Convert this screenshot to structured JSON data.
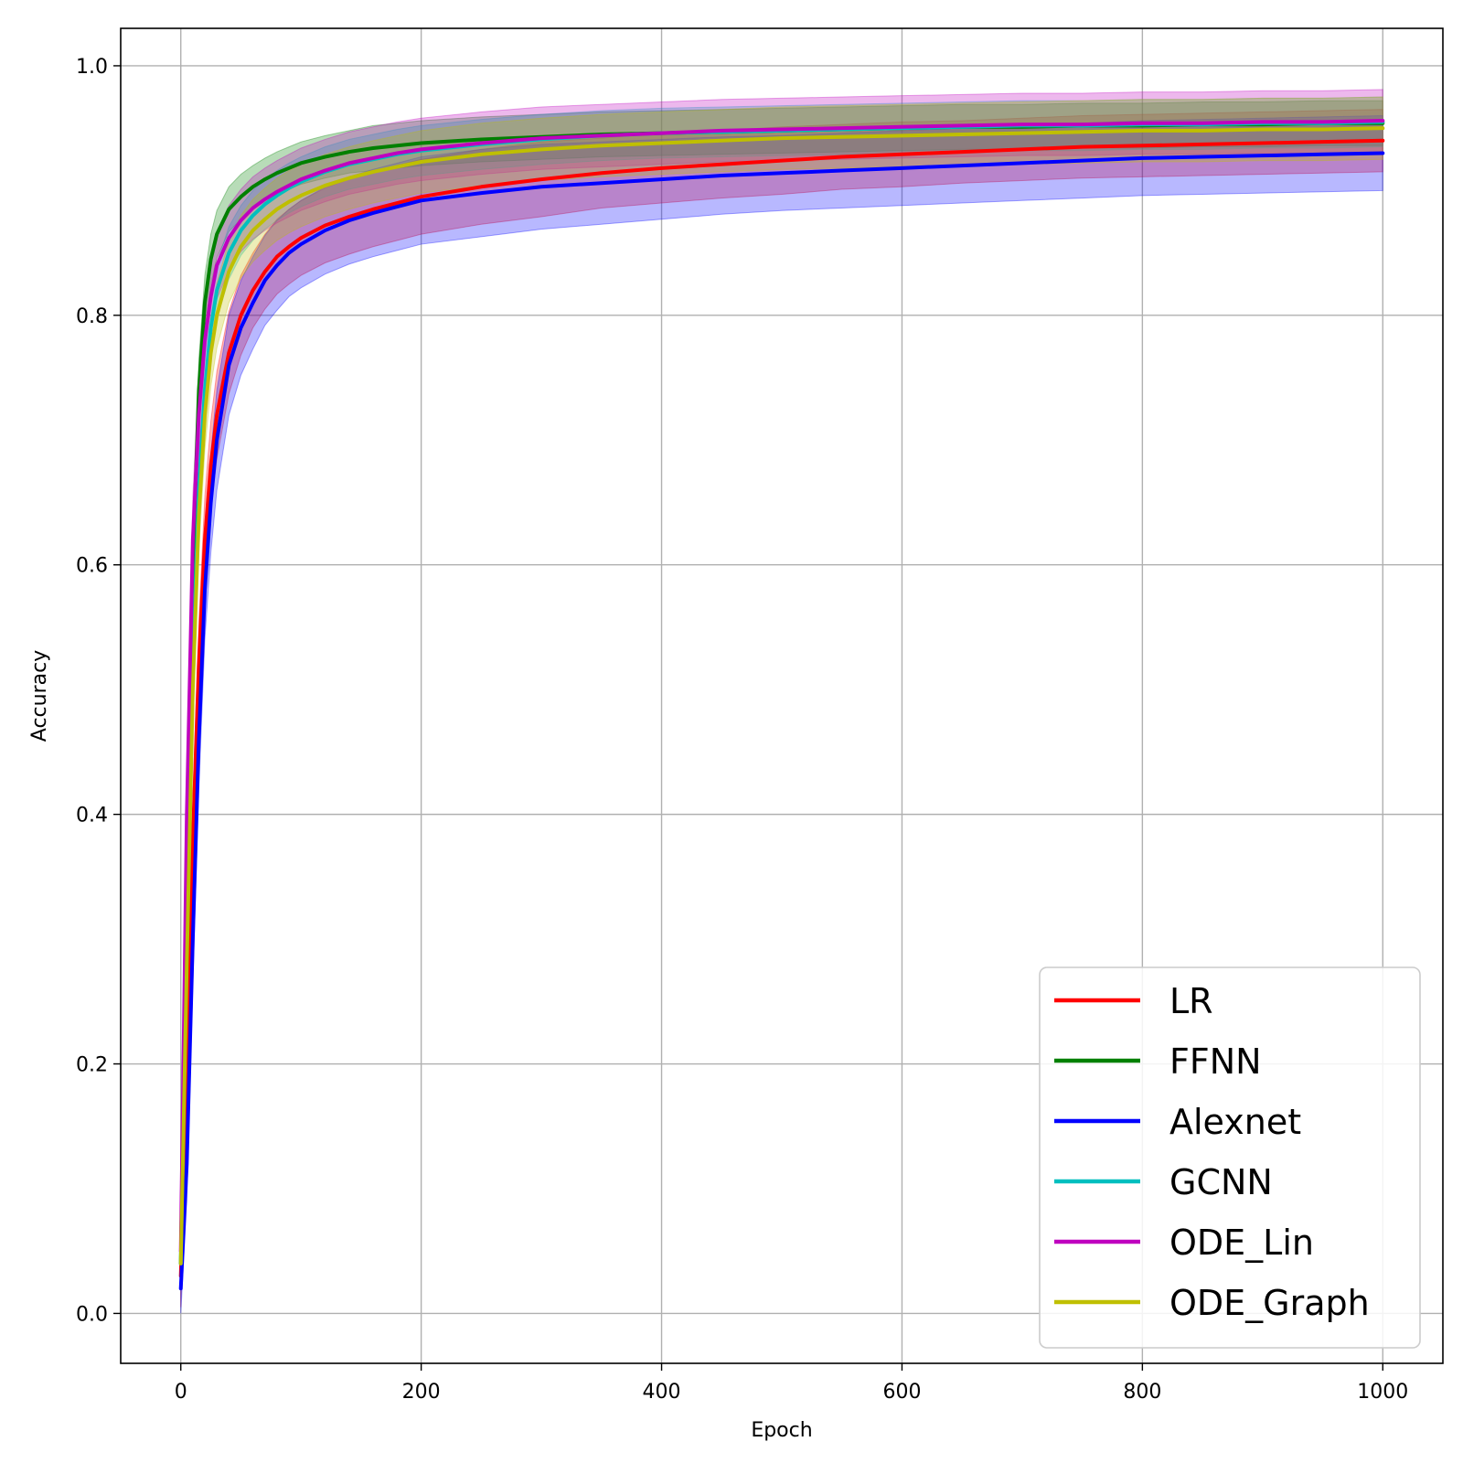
{
  "chart_data": {
    "type": "line",
    "title": "",
    "xlabel": "Epoch",
    "ylabel": "Accuracy",
    "xlim": [
      -50,
      1050
    ],
    "ylim": [
      -0.04,
      1.03
    ],
    "xticks": [
      0,
      200,
      400,
      600,
      800,
      1000
    ],
    "xtick_labels": [
      "0",
      "200",
      "400",
      "600",
      "800",
      "1000"
    ],
    "yticks": [
      0.0,
      0.2,
      0.4,
      0.6,
      0.8,
      1.0
    ],
    "ytick_labels": [
      "0.0",
      "0.2",
      "0.4",
      "0.6",
      "0.8",
      "1.0"
    ],
    "grid": true,
    "legend_position": "bottom-right",
    "x": [
      0,
      5,
      10,
      15,
      20,
      25,
      30,
      40,
      50,
      60,
      70,
      80,
      90,
      100,
      120,
      140,
      160,
      180,
      200,
      250,
      300,
      350,
      400,
      450,
      500,
      550,
      600,
      650,
      700,
      750,
      800,
      850,
      900,
      950,
      1000
    ],
    "series": [
      {
        "name": "LR",
        "color": "#ff0000",
        "values": [
          0.03,
          0.2,
          0.38,
          0.52,
          0.62,
          0.68,
          0.72,
          0.77,
          0.8,
          0.82,
          0.835,
          0.847,
          0.855,
          0.862,
          0.872,
          0.879,
          0.885,
          0.89,
          0.895,
          0.903,
          0.909,
          0.914,
          0.918,
          0.921,
          0.924,
          0.927,
          0.929,
          0.931,
          0.933,
          0.935,
          0.936,
          0.937,
          0.938,
          0.939,
          0.94
        ],
        "band": [
          0.025,
          0.025,
          0.03,
          0.035,
          0.035,
          0.035,
          0.035,
          0.033,
          0.032,
          0.03,
          0.03,
          0.03,
          0.03,
          0.03,
          0.03,
          0.03,
          0.03,
          0.03,
          0.03,
          0.03,
          0.03,
          0.028,
          0.028,
          0.027,
          0.027,
          0.026,
          0.026,
          0.025,
          0.025,
          0.025,
          0.025,
          0.025,
          0.025,
          0.025,
          0.025
        ]
      },
      {
        "name": "FFNN",
        "color": "#008000",
        "values": [
          0.04,
          0.35,
          0.6,
          0.74,
          0.81,
          0.845,
          0.865,
          0.885,
          0.895,
          0.903,
          0.909,
          0.914,
          0.918,
          0.922,
          0.927,
          0.931,
          0.934,
          0.936,
          0.938,
          0.941,
          0.943,
          0.945,
          0.946,
          0.947,
          0.948,
          0.949,
          0.95,
          0.951,
          0.951,
          0.952,
          0.952,
          0.953,
          0.953,
          0.954,
          0.954
        ],
        "band": [
          0.02,
          0.03,
          0.03,
          0.025,
          0.022,
          0.02,
          0.019,
          0.018,
          0.018,
          0.017,
          0.017,
          0.017,
          0.017,
          0.017,
          0.017,
          0.017,
          0.018,
          0.018,
          0.018,
          0.018,
          0.018,
          0.018,
          0.018,
          0.018,
          0.018,
          0.018,
          0.018,
          0.018,
          0.018,
          0.018,
          0.018,
          0.018,
          0.018,
          0.018,
          0.018
        ]
      },
      {
        "name": "Alexnet",
        "color": "#0000ff",
        "values": [
          0.02,
          0.12,
          0.3,
          0.46,
          0.58,
          0.65,
          0.7,
          0.76,
          0.79,
          0.81,
          0.828,
          0.84,
          0.85,
          0.857,
          0.868,
          0.876,
          0.882,
          0.887,
          0.892,
          0.898,
          0.903,
          0.906,
          0.909,
          0.912,
          0.914,
          0.916,
          0.918,
          0.92,
          0.922,
          0.924,
          0.926,
          0.927,
          0.928,
          0.929,
          0.93
        ],
        "band": [
          0.02,
          0.03,
          0.035,
          0.04,
          0.04,
          0.04,
          0.04,
          0.04,
          0.038,
          0.037,
          0.036,
          0.036,
          0.035,
          0.035,
          0.035,
          0.035,
          0.035,
          0.035,
          0.035,
          0.035,
          0.034,
          0.033,
          0.032,
          0.031,
          0.03,
          0.03,
          0.03,
          0.03,
          0.03,
          0.03,
          0.03,
          0.03,
          0.03,
          0.03,
          0.03
        ]
      },
      {
        "name": "GCNN",
        "color": "#00bfbf",
        "values": [
          0.04,
          0.3,
          0.52,
          0.66,
          0.74,
          0.79,
          0.82,
          0.85,
          0.868,
          0.88,
          0.889,
          0.896,
          0.902,
          0.907,
          0.915,
          0.921,
          0.925,
          0.929,
          0.932,
          0.937,
          0.941,
          0.944,
          0.946,
          0.947,
          0.948,
          0.949,
          0.95,
          0.951,
          0.952,
          0.952,
          0.953,
          0.953,
          0.954,
          0.954,
          0.955
        ],
        "band": [
          0.02,
          0.03,
          0.03,
          0.028,
          0.026,
          0.024,
          0.022,
          0.021,
          0.02,
          0.02,
          0.02,
          0.02,
          0.02,
          0.02,
          0.02,
          0.02,
          0.02,
          0.02,
          0.02,
          0.02,
          0.02,
          0.02,
          0.02,
          0.02,
          0.02,
          0.02,
          0.02,
          0.02,
          0.02,
          0.02,
          0.02,
          0.02,
          0.02,
          0.02,
          0.02
        ]
      },
      {
        "name": "ODE_Lin",
        "color": "#bf00bf",
        "values": [
          0.05,
          0.4,
          0.62,
          0.72,
          0.78,
          0.815,
          0.84,
          0.862,
          0.876,
          0.886,
          0.893,
          0.899,
          0.904,
          0.909,
          0.916,
          0.922,
          0.926,
          0.93,
          0.933,
          0.938,
          0.942,
          0.944,
          0.946,
          0.948,
          0.949,
          0.95,
          0.951,
          0.952,
          0.953,
          0.953,
          0.954,
          0.954,
          0.955,
          0.955,
          0.956
        ],
        "band": [
          0.03,
          0.035,
          0.035,
          0.032,
          0.03,
          0.028,
          0.027,
          0.026,
          0.025,
          0.025,
          0.025,
          0.025,
          0.025,
          0.025,
          0.025,
          0.025,
          0.025,
          0.025,
          0.025,
          0.025,
          0.025,
          0.025,
          0.025,
          0.025,
          0.025,
          0.025,
          0.025,
          0.025,
          0.025,
          0.025,
          0.025,
          0.025,
          0.025,
          0.025,
          0.025
        ]
      },
      {
        "name": "ODE_Graph",
        "color": "#bfbf00",
        "values": [
          0.04,
          0.28,
          0.5,
          0.64,
          0.72,
          0.77,
          0.8,
          0.835,
          0.855,
          0.868,
          0.877,
          0.885,
          0.891,
          0.896,
          0.904,
          0.91,
          0.915,
          0.919,
          0.923,
          0.929,
          0.933,
          0.936,
          0.938,
          0.94,
          0.942,
          0.943,
          0.944,
          0.945,
          0.946,
          0.947,
          0.948,
          0.948,
          0.949,
          0.949,
          0.95
        ],
        "band": [
          0.02,
          0.03,
          0.03,
          0.03,
          0.028,
          0.027,
          0.026,
          0.025,
          0.025,
          0.025,
          0.025,
          0.025,
          0.025,
          0.025,
          0.025,
          0.025,
          0.025,
          0.025,
          0.025,
          0.025,
          0.025,
          0.025,
          0.025,
          0.025,
          0.025,
          0.025,
          0.025,
          0.025,
          0.025,
          0.025,
          0.025,
          0.025,
          0.025,
          0.025,
          0.025
        ]
      }
    ]
  }
}
